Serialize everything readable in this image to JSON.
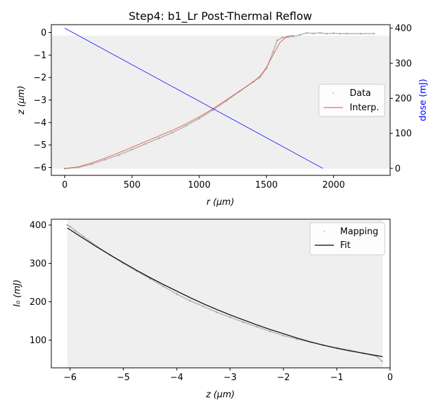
{
  "chart_data": [
    {
      "type": "line",
      "title": "Step4: b1_Lr Post-Thermal Reflow",
      "xlabel": "r (μm)",
      "ylabel": "z (μm)",
      "ylabel_right": "dose (mJ)",
      "xlim": [
        -100,
        2420
      ],
      "ylim": [
        -6.35,
        0.35
      ],
      "ylim_right": [
        -20,
        410
      ],
      "x_ticks": [
        0,
        500,
        1000,
        1500,
        2000
      ],
      "y_ticks": [
        0,
        -1,
        -2,
        -3,
        -4,
        -5,
        -6
      ],
      "y_right_ticks": [
        0,
        100,
        200,
        300,
        400
      ],
      "shaded_region": {
        "x": [
          -100,
          2420
        ],
        "y": [
          -6.05,
          -0.14
        ]
      },
      "legend": {
        "position": "center-right",
        "entries": [
          "Data",
          "Interp."
        ]
      },
      "series": [
        {
          "name": "Data",
          "style": "points",
          "color": "#a9a9a9",
          "x": [
            0,
            100,
            200,
            300,
            400,
            500,
            600,
            700,
            800,
            900,
            1000,
            1100,
            1200,
            1300,
            1400,
            1450,
            1500,
            1550,
            1580,
            1620,
            1660,
            1700,
            1750,
            1800,
            1850,
            1900,
            1950,
            2000,
            2050,
            2100,
            2200,
            2300
          ],
          "y": [
            -6.05,
            -6.0,
            -5.85,
            -5.65,
            -5.45,
            -5.2,
            -4.95,
            -4.7,
            -4.45,
            -4.15,
            -3.82,
            -3.45,
            -3.05,
            -2.62,
            -2.2,
            -2.0,
            -1.6,
            -0.85,
            -0.35,
            -0.22,
            -0.2,
            -0.17,
            -0.1,
            -0.02,
            -0.04,
            -0.02,
            -0.05,
            -0.03,
            -0.05,
            -0.05,
            -0.05,
            -0.05
          ]
        },
        {
          "name": "Interp.",
          "style": "line",
          "color": "#e8473c",
          "x": [
            0,
            100,
            200,
            300,
            400,
            500,
            600,
            700,
            800,
            900,
            1000,
            1100,
            1200,
            1300,
            1400,
            1450,
            1500,
            1550,
            1600,
            1650,
            1700
          ],
          "y": [
            -6.05,
            -5.97,
            -5.8,
            -5.58,
            -5.35,
            -5.1,
            -4.85,
            -4.6,
            -4.35,
            -4.07,
            -3.75,
            -3.4,
            -3.0,
            -2.6,
            -2.2,
            -1.95,
            -1.55,
            -1.0,
            -0.45,
            -0.18,
            -0.12
          ]
        },
        {
          "name": "",
          "axis": "right",
          "style": "line",
          "color": "#0000ff",
          "x": [
            0,
            1920
          ],
          "y": [
            400,
            0
          ]
        }
      ]
    },
    {
      "type": "line",
      "xlabel": "z (μm)",
      "ylabel": "I₀ (mJ)",
      "xlim": [
        -6.35,
        0.0
      ],
      "ylim": [
        28,
        415
      ],
      "x_ticks": [
        -6,
        -5,
        -4,
        -3,
        -2,
        -1,
        0
      ],
      "y_ticks": [
        100,
        200,
        300,
        400
      ],
      "shaded_region": {
        "x": [
          -6.05,
          -0.14
        ],
        "y": [
          28,
          415
        ]
      },
      "legend": {
        "position": "top-right",
        "entries": [
          "Mapping",
          "Fit"
        ]
      },
      "series": [
        {
          "name": "Mapping",
          "style": "points",
          "color": "#a9a9a9",
          "x": [
            -6.05,
            -6.0,
            -5.9,
            -5.75,
            -5.5,
            -5.25,
            -5.0,
            -4.75,
            -4.5,
            -4.25,
            -4.0,
            -3.75,
            -3.5,
            -3.25,
            -3.0,
            -2.75,
            -2.5,
            -2.25,
            -2.0,
            -1.75,
            -1.5,
            -1.25,
            -1.0,
            -0.75,
            -0.5,
            -0.25,
            -0.15
          ],
          "y": [
            400,
            396,
            385,
            370,
            345,
            322,
            300,
            280,
            260,
            240,
            220,
            203,
            188,
            173,
            160,
            147,
            135,
            123,
            112,
            103,
            95,
            87,
            80,
            74,
            66,
            58,
            45
          ]
        },
        {
          "name": "Fit",
          "style": "line",
          "color": "#000000",
          "x": [
            -6.05,
            -5.75,
            -5.5,
            -5.25,
            -5.0,
            -4.75,
            -4.5,
            -4.25,
            -4.0,
            -3.75,
            -3.5,
            -3.25,
            -3.0,
            -2.75,
            -2.5,
            -2.25,
            -2.0,
            -1.75,
            -1.5,
            -1.25,
            -1.0,
            -0.75,
            -0.5,
            -0.25,
            -0.14
          ],
          "y": [
            392,
            365,
            343,
            322,
            302,
            282,
            263,
            245,
            228,
            211,
            195,
            180,
            166,
            153,
            140,
            128,
            117,
            106,
            96,
            87,
            79,
            72,
            66,
            60,
            57
          ]
        }
      ]
    }
  ]
}
